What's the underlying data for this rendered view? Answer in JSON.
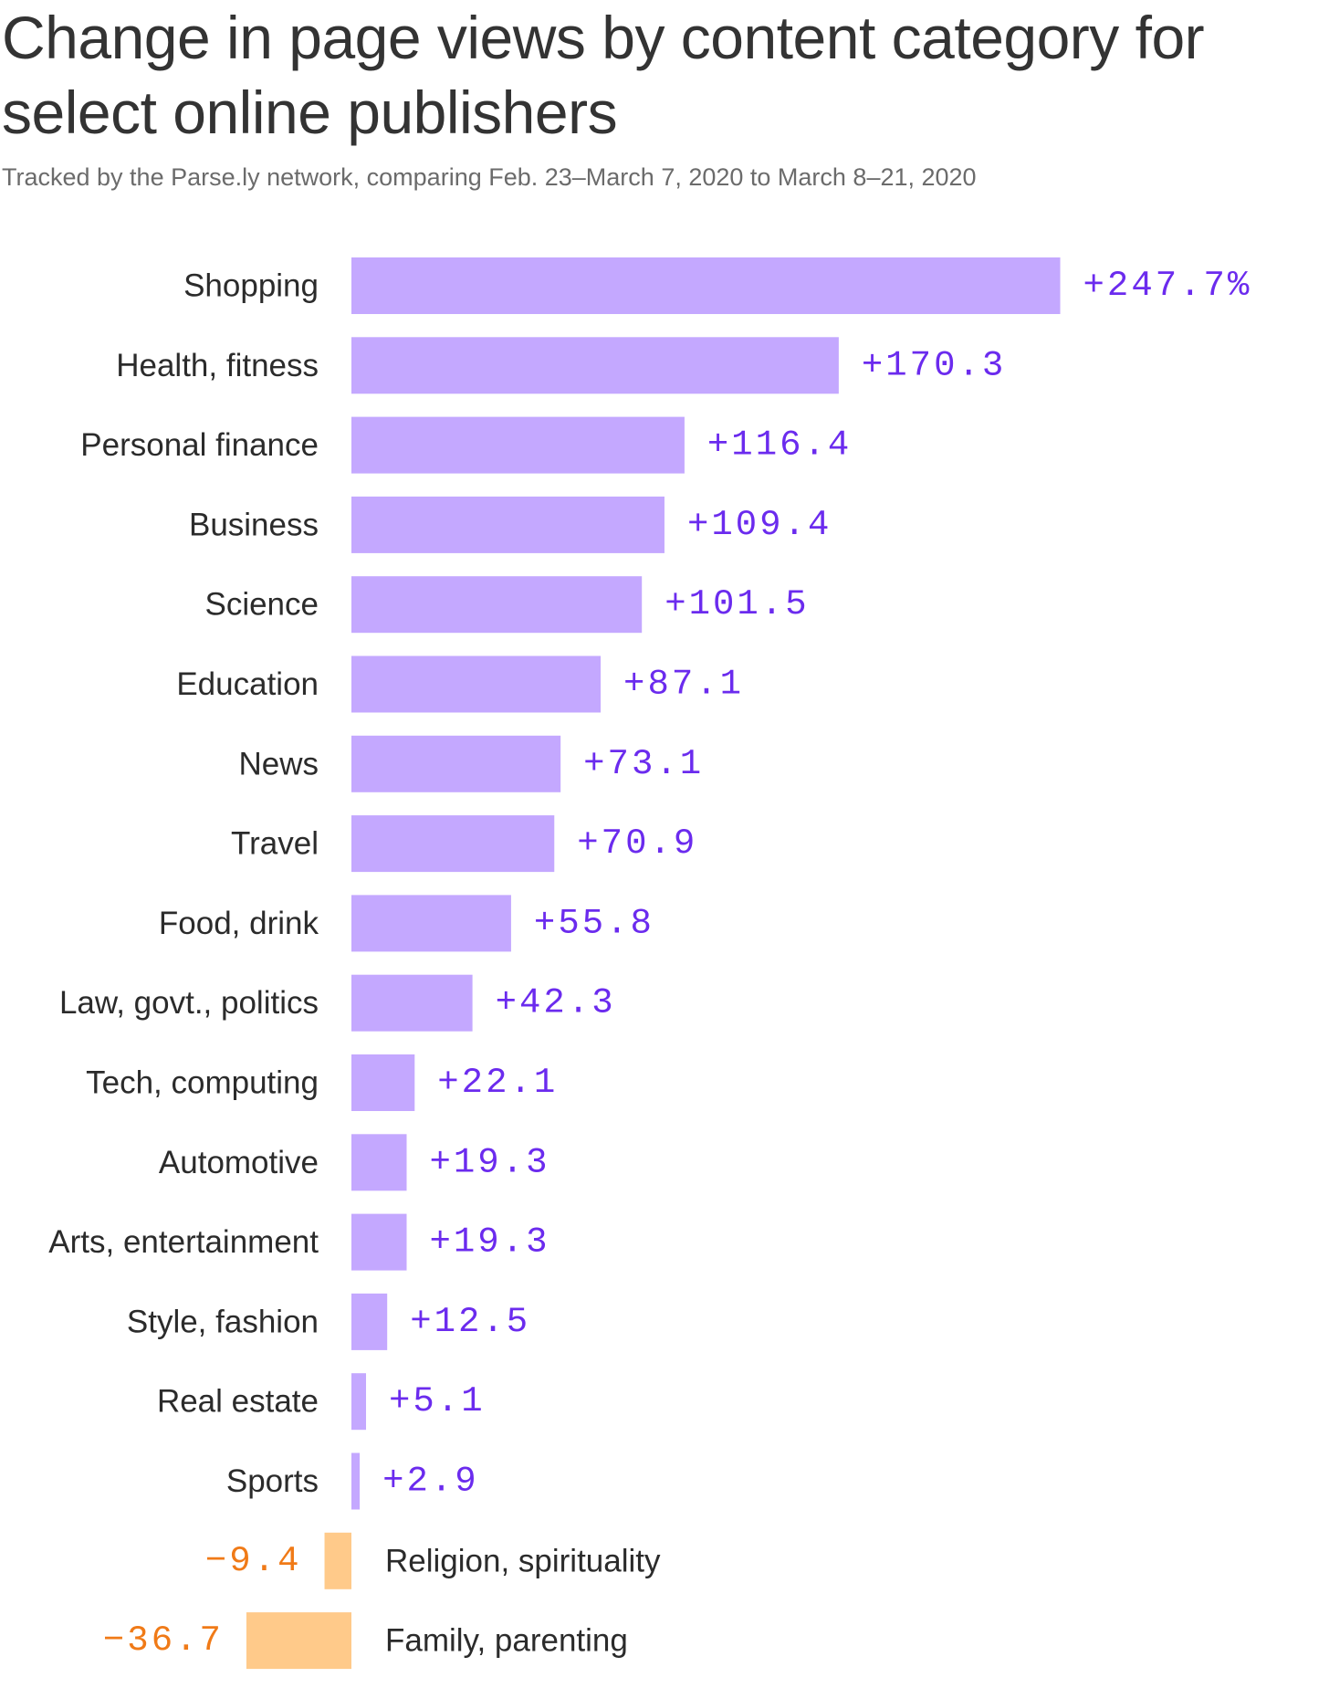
{
  "title": "Change in page views by content category for select online publishers",
  "subtitle": "Tracked by the Parse.ly network, comparing Feb. 23–March 7, 2020 to March 8–21, 2020",
  "colors": {
    "positive_bar": "#c4a8ff",
    "positive_text": "#6b2bee",
    "negative_bar": "#ffca8a",
    "negative_text": "#f07a17"
  },
  "chart_data": {
    "type": "bar",
    "orientation": "horizontal",
    "unit": "%",
    "title": "Change in page views by content category for select online publishers",
    "subtitle": "Tracked by the Parse.ly network, comparing Feb. 23–March 7, 2020 to March 8–21, 2020",
    "categories": [
      "Shopping",
      "Health, fitness",
      "Personal finance",
      "Business",
      "Science",
      "Education",
      "News",
      "Travel",
      "Food, drink",
      "Law, govt., politics",
      "Tech, computing",
      "Automotive",
      "Arts, entertainment",
      "Style, fashion",
      "Real estate",
      "Sports",
      "Religion, spirituality",
      "Family, parenting"
    ],
    "values": [
      247.7,
      170.3,
      116.4,
      109.4,
      101.5,
      87.1,
      73.1,
      70.9,
      55.8,
      42.3,
      22.1,
      19.3,
      19.3,
      12.5,
      5.1,
      2.9,
      -9.4,
      -36.7
    ],
    "value_labels": [
      "+247.7%",
      "+170.3",
      "+116.4",
      "+109.4",
      "+101.5",
      "+87.1",
      "+73.1",
      "+70.9",
      "+55.8",
      "+42.3",
      "+22.1",
      "+19.3",
      "+19.3",
      "+12.5",
      "+5.1",
      "+2.9",
      "−9.4",
      "−36.7"
    ],
    "grid": false,
    "legend": "none"
  }
}
